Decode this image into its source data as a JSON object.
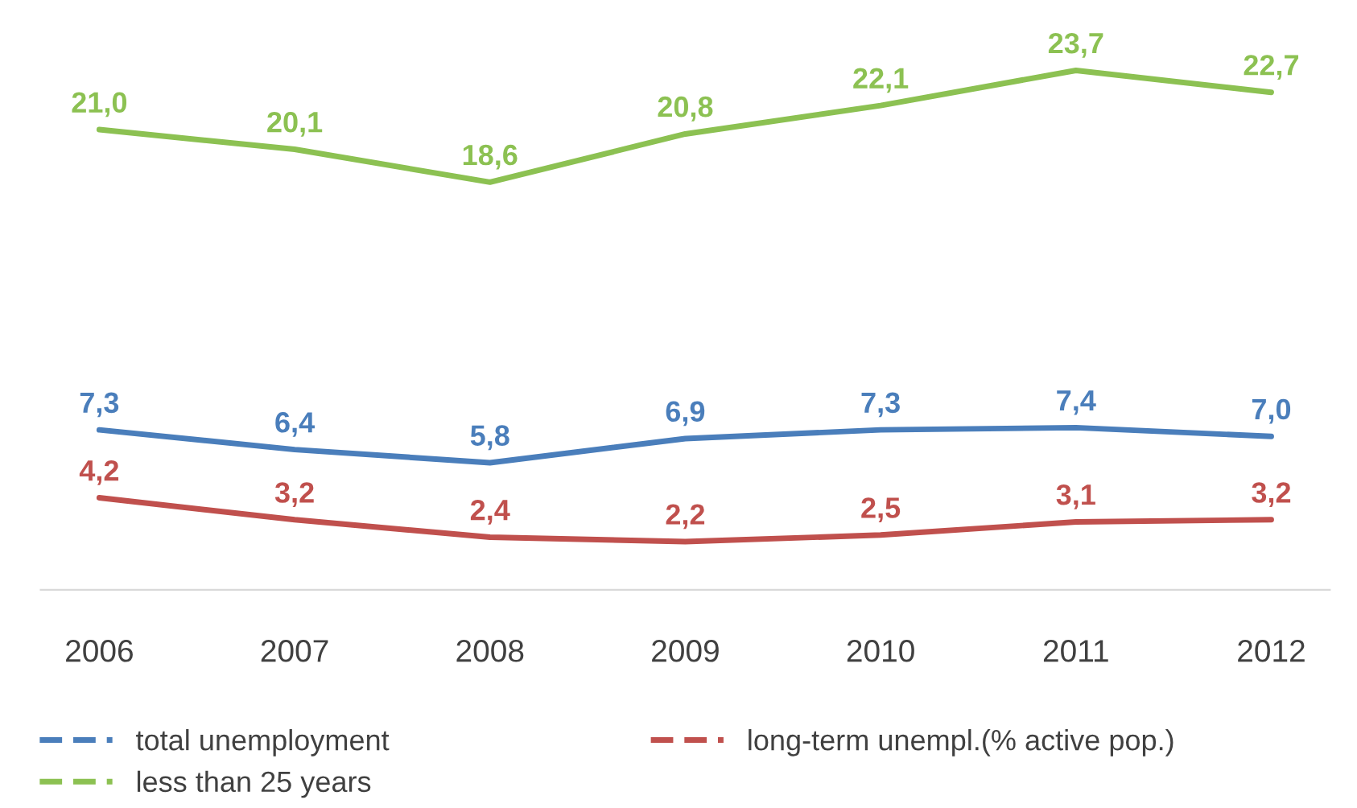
{
  "chart_data": {
    "type": "line",
    "categories": [
      "2006",
      "2007",
      "2008",
      "2009",
      "2010",
      "2011",
      "2012"
    ],
    "series": [
      {
        "name": "total unemployment",
        "color": "#4a7ebb",
        "values": [
          7.3,
          6.4,
          5.8,
          6.9,
          7.3,
          7.4,
          7.0
        ],
        "value_labels": [
          "7,3",
          "6,4",
          "5,8",
          "6,9",
          "7,3",
          "7,4",
          "7,0"
        ]
      },
      {
        "name": "long-term unempl.(% active pop.)",
        "color": "#c0504d",
        "values": [
          4.2,
          3.2,
          2.4,
          2.2,
          2.5,
          3.1,
          3.2
        ],
        "value_labels": [
          "4,2",
          "3,2",
          "2,4",
          "2,2",
          "2,5",
          "3,1",
          "3,2"
        ]
      },
      {
        "name": "less than 25 years",
        "color": "#8cc152",
        "values": [
          21.0,
          20.1,
          18.6,
          20.8,
          22.1,
          23.7,
          22.7
        ],
        "value_labels": [
          "21,0",
          "20,1",
          "18,6",
          "20,8",
          "22,1",
          "23,7",
          "22,7"
        ]
      }
    ],
    "legend": "bottom",
    "grid": false
  }
}
